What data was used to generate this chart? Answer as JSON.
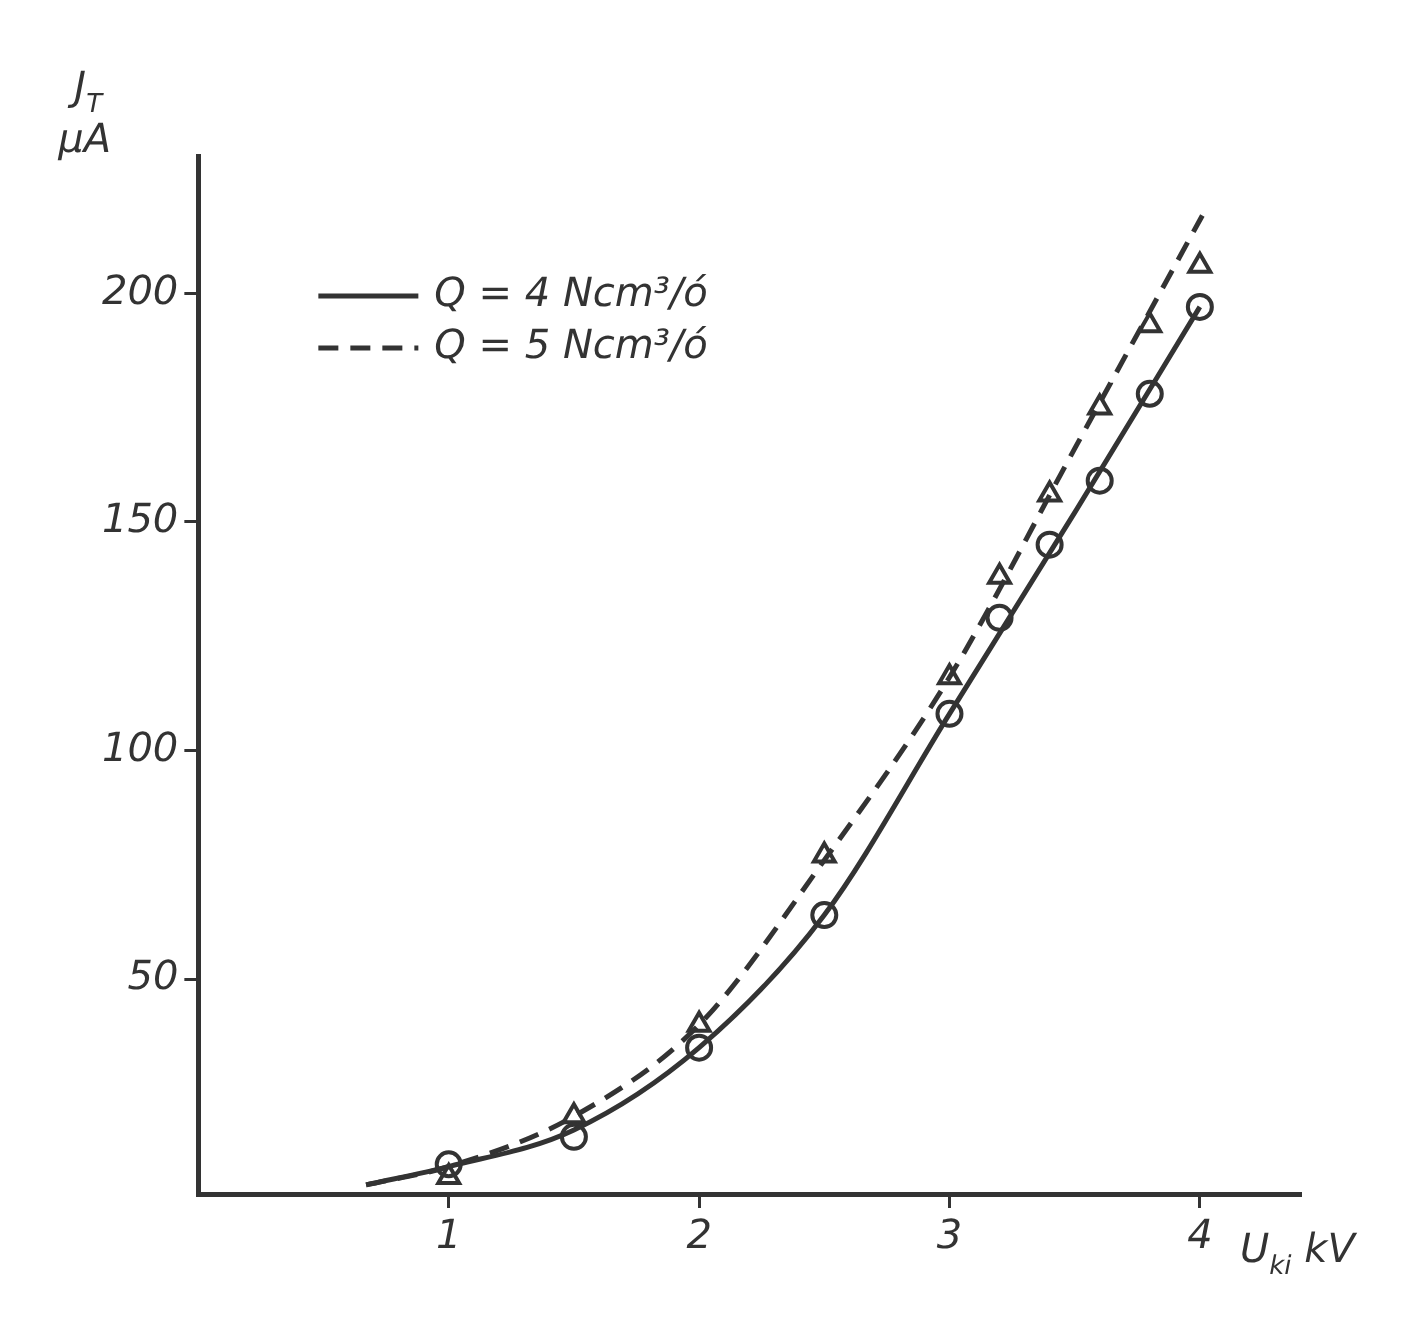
{
  "chart_data": {
    "type": "line",
    "xlabel": "U$_{ki}$ kV",
    "ylabel": "J$_{T}$ μA",
    "xlim": [
      0,
      4.4
    ],
    "ylim": [
      3,
      230
    ],
    "xticks": [
      1,
      2,
      3,
      4
    ],
    "yticks": [
      50,
      100,
      150,
      200
    ],
    "grid": false,
    "legend": "top left",
    "series": [
      {
        "name": "Q = 4 Ncm³/ó",
        "color": "#333333",
        "line_style": "solid",
        "marker": "none",
        "x": [
          0.67,
          1,
          1.5,
          2,
          2.5,
          3,
          3.5,
          4
        ],
        "values": [
          5,
          9,
          17,
          35,
          64,
          108,
          152,
          197
        ]
      },
      {
        "name": "Q = 5 Ncm³/ó",
        "color": "#333333",
        "line_style": "dashed",
        "marker": "none",
        "x": [
          0.67,
          1,
          1.5,
          2,
          2.5,
          3,
          3.5,
          4.01
        ],
        "values": [
          5,
          9,
          20,
          40,
          76,
          116,
          166,
          217
        ]
      },
      {
        "type": "scatter",
        "color": "#333333",
        "marker": "circle",
        "x": [
          1,
          1.5,
          2,
          2.5,
          3,
          3.2,
          3.4,
          3.6,
          3.8,
          4
        ],
        "values": [
          9.5,
          15.5,
          35,
          64,
          108,
          129,
          145,
          159,
          178,
          197
        ]
      },
      {
        "type": "scatter",
        "color": "#333333",
        "marker": "triangle",
        "x": [
          1,
          1.5,
          2,
          2.5,
          3,
          3.2,
          3.4,
          3.6,
          3.8,
          4
        ],
        "values": [
          6.7,
          20,
          40,
          77,
          116,
          138,
          156,
          175,
          193,
          206
        ]
      }
    ]
  }
}
